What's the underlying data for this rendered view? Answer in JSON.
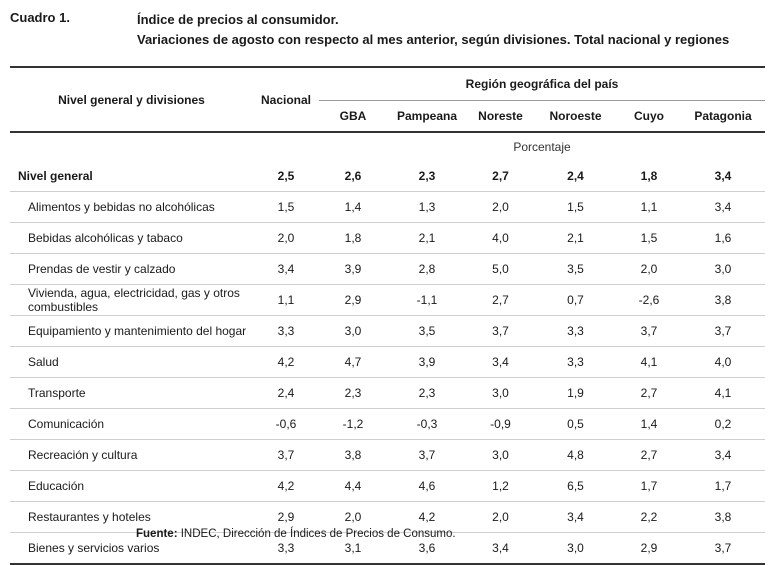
{
  "header": {
    "cuadro": "Cuadro 1.",
    "title_line1": "Índice de precios al consumidor.",
    "title_line2": "Variaciones de agosto con respecto al mes anterior, según divisiones. Total nacional y regiones"
  },
  "table": {
    "col_label_header": "Nivel general y divisiones",
    "nacional_header": "Nacional",
    "region_header": "Región geográfica del país",
    "regions": [
      "GBA",
      "Pampeana",
      "Noreste",
      "Noroeste",
      "Cuyo",
      "Patagonia"
    ],
    "unit_label": "Porcentaje",
    "rows": [
      {
        "label": "Nivel general",
        "values": [
          "2,5",
          "2,6",
          "2,3",
          "2,7",
          "2,4",
          "1,8",
          "3,4"
        ]
      },
      {
        "label": "Alimentos y bebidas no alcohólicas",
        "values": [
          "1,5",
          "1,4",
          "1,3",
          "2,0",
          "1,5",
          "1,1",
          "3,4"
        ]
      },
      {
        "label": "Bebidas alcohólicas y tabaco",
        "values": [
          "2,0",
          "1,8",
          "2,1",
          "4,0",
          "2,1",
          "1,5",
          "1,6"
        ]
      },
      {
        "label": "Prendas de vestir y calzado",
        "values": [
          "3,4",
          "3,9",
          "2,8",
          "5,0",
          "3,5",
          "2,0",
          "3,0"
        ]
      },
      {
        "label": "Vivienda, agua, electricidad, gas y otros combustibles",
        "values": [
          "1,1",
          "2,9",
          "-1,1",
          "2,7",
          "0,7",
          "-2,6",
          "3,8"
        ]
      },
      {
        "label": "Equipamiento y mantenimiento del hogar",
        "values": [
          "3,3",
          "3,0",
          "3,5",
          "3,7",
          "3,3",
          "3,7",
          "3,7"
        ]
      },
      {
        "label": "Salud",
        "values": [
          "4,2",
          "4,7",
          "3,9",
          "3,4",
          "3,3",
          "4,1",
          "4,0"
        ]
      },
      {
        "label": "Transporte",
        "values": [
          "2,4",
          "2,3",
          "2,3",
          "3,0",
          "1,9",
          "2,7",
          "4,1"
        ]
      },
      {
        "label": "Comunicación",
        "values": [
          "-0,6",
          "-1,2",
          "-0,3",
          "-0,9",
          "0,5",
          "1,4",
          "0,2"
        ]
      },
      {
        "label": "Recreación y cultura",
        "values": [
          "3,7",
          "3,8",
          "3,7",
          "3,0",
          "4,8",
          "2,7",
          "3,4"
        ]
      },
      {
        "label": "Educación",
        "values": [
          "4,2",
          "4,4",
          "4,6",
          "1,2",
          "6,5",
          "1,7",
          "1,7"
        ]
      },
      {
        "label": "Restaurantes y hoteles",
        "values": [
          "2,9",
          "2,0",
          "4,2",
          "2,0",
          "3,4",
          "2,2",
          "3,8"
        ]
      },
      {
        "label": "Bienes y servicios varios",
        "values": [
          "3,3",
          "3,1",
          "3,6",
          "3,4",
          "3,0",
          "2,9",
          "3,7"
        ]
      }
    ]
  },
  "footer": {
    "source_label": "Fuente:",
    "source_text": "INDEC, Dirección de Índices de Precios de Consumo."
  }
}
